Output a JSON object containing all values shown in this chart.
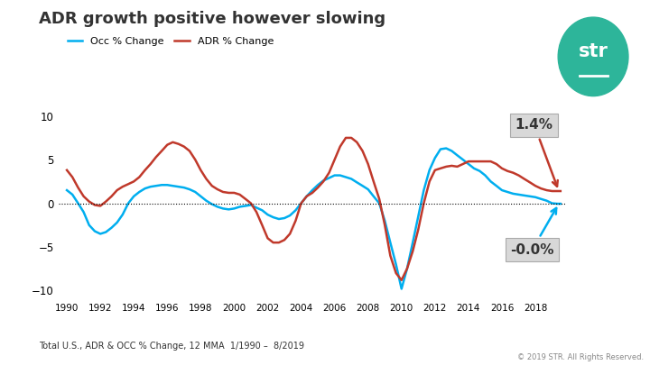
{
  "title": "ADR growth positive however slowing",
  "title_fontsize": 13,
  "legend_labels": [
    "Occ % Change",
    "ADR % Change"
  ],
  "occ_color": "#00AEEF",
  "adr_color": "#C0392B",
  "background_color": "#FFFFFF",
  "ylim": [
    -11,
    12
  ],
  "yticks": [
    -10,
    -5,
    0,
    5,
    10
  ],
  "footer": "Total U.S., ADR & OCC % Change, 12 MMA  1/1990 –  8/2019",
  "copyright": "© 2019 STR. All Rights Reserved.",
  "annotation_adr": "1.4%",
  "annotation_occ": "-0.0%",
  "years": [
    1990,
    1992,
    1994,
    1996,
    1998,
    2000,
    2002,
    2004,
    2006,
    2008,
    2010,
    2012,
    2014,
    2016,
    2018
  ],
  "str_logo_color": "#2DB59A",
  "occ_data_x": [
    1990.0,
    1990.33,
    1990.67,
    1991.0,
    1991.33,
    1991.67,
    1992.0,
    1992.33,
    1992.67,
    1993.0,
    1993.33,
    1993.67,
    1994.0,
    1994.33,
    1994.67,
    1995.0,
    1995.33,
    1995.67,
    1996.0,
    1996.33,
    1996.67,
    1997.0,
    1997.33,
    1997.67,
    1998.0,
    1998.33,
    1998.67,
    1999.0,
    1999.33,
    1999.67,
    2000.0,
    2000.33,
    2000.67,
    2001.0,
    2001.33,
    2001.67,
    2002.0,
    2002.33,
    2002.67,
    2003.0,
    2003.33,
    2003.67,
    2004.0,
    2004.33,
    2004.67,
    2005.0,
    2005.33,
    2005.67,
    2006.0,
    2006.33,
    2006.67,
    2007.0,
    2007.33,
    2007.67,
    2008.0,
    2008.33,
    2008.67,
    2009.0,
    2009.33,
    2009.67,
    2010.0,
    2010.33,
    2010.67,
    2011.0,
    2011.33,
    2011.67,
    2012.0,
    2012.33,
    2012.67,
    2013.0,
    2013.33,
    2013.67,
    2014.0,
    2014.33,
    2014.67,
    2015.0,
    2015.33,
    2015.67,
    2016.0,
    2016.33,
    2016.67,
    2017.0,
    2017.33,
    2017.67,
    2018.0,
    2018.33,
    2018.67,
    2019.0,
    2019.33,
    2019.5
  ],
  "occ_data_y": [
    1.5,
    1.0,
    0.0,
    -1.0,
    -2.5,
    -3.2,
    -3.5,
    -3.3,
    -2.8,
    -2.2,
    -1.3,
    0.0,
    0.8,
    1.3,
    1.7,
    1.9,
    2.0,
    2.1,
    2.1,
    2.0,
    1.9,
    1.8,
    1.6,
    1.3,
    0.8,
    0.3,
    -0.1,
    -0.4,
    -0.6,
    -0.7,
    -0.6,
    -0.4,
    -0.3,
    -0.2,
    -0.5,
    -0.8,
    -1.3,
    -1.6,
    -1.8,
    -1.7,
    -1.4,
    -0.8,
    0.0,
    0.8,
    1.5,
    2.1,
    2.6,
    2.9,
    3.2,
    3.2,
    3.0,
    2.8,
    2.4,
    2.0,
    1.6,
    0.8,
    0.0,
    -2.0,
    -4.5,
    -7.0,
    -9.8,
    -7.5,
    -4.5,
    -1.5,
    1.5,
    3.8,
    5.2,
    6.2,
    6.3,
    6.0,
    5.5,
    5.0,
    4.5,
    4.0,
    3.7,
    3.2,
    2.5,
    2.0,
    1.5,
    1.3,
    1.1,
    1.0,
    0.9,
    0.8,
    0.7,
    0.5,
    0.3,
    0.0,
    -0.05,
    -0.05
  ],
  "adr_data_x": [
    1990.0,
    1990.33,
    1990.67,
    1991.0,
    1991.33,
    1991.67,
    1992.0,
    1992.33,
    1992.67,
    1993.0,
    1993.33,
    1993.67,
    1994.0,
    1994.33,
    1994.67,
    1995.0,
    1995.33,
    1995.67,
    1996.0,
    1996.33,
    1996.67,
    1997.0,
    1997.33,
    1997.67,
    1998.0,
    1998.33,
    1998.67,
    1999.0,
    1999.33,
    1999.67,
    2000.0,
    2000.33,
    2000.67,
    2001.0,
    2001.33,
    2001.67,
    2002.0,
    2002.33,
    2002.67,
    2003.0,
    2003.33,
    2003.67,
    2004.0,
    2004.33,
    2004.67,
    2005.0,
    2005.33,
    2005.67,
    2006.0,
    2006.33,
    2006.67,
    2007.0,
    2007.33,
    2007.67,
    2008.0,
    2008.33,
    2008.67,
    2009.0,
    2009.33,
    2009.67,
    2010.0,
    2010.33,
    2010.67,
    2011.0,
    2011.33,
    2011.67,
    2012.0,
    2012.33,
    2012.67,
    2013.0,
    2013.33,
    2013.67,
    2014.0,
    2014.33,
    2014.67,
    2015.0,
    2015.33,
    2015.67,
    2016.0,
    2016.33,
    2016.67,
    2017.0,
    2017.33,
    2017.67,
    2018.0,
    2018.33,
    2018.67,
    2019.0,
    2019.33,
    2019.5
  ],
  "adr_data_y": [
    3.8,
    3.0,
    1.8,
    0.8,
    0.2,
    -0.2,
    -0.3,
    0.2,
    0.8,
    1.5,
    1.9,
    2.2,
    2.5,
    3.0,
    3.8,
    4.5,
    5.3,
    6.0,
    6.7,
    7.0,
    6.8,
    6.5,
    6.0,
    5.0,
    3.8,
    2.8,
    2.0,
    1.6,
    1.3,
    1.2,
    1.2,
    1.0,
    0.5,
    0.0,
    -1.0,
    -2.5,
    -4.0,
    -4.5,
    -4.5,
    -4.2,
    -3.5,
    -2.0,
    0.0,
    0.8,
    1.2,
    1.8,
    2.5,
    3.5,
    5.0,
    6.5,
    7.5,
    7.5,
    7.0,
    6.0,
    4.5,
    2.5,
    0.5,
    -2.5,
    -6.0,
    -8.0,
    -8.8,
    -7.5,
    -5.5,
    -3.0,
    0.0,
    2.5,
    3.8,
    4.0,
    4.2,
    4.3,
    4.2,
    4.5,
    4.8,
    4.8,
    4.8,
    4.8,
    4.8,
    4.5,
    4.0,
    3.7,
    3.5,
    3.2,
    2.8,
    2.4,
    2.0,
    1.7,
    1.5,
    1.4,
    1.4,
    1.4
  ]
}
